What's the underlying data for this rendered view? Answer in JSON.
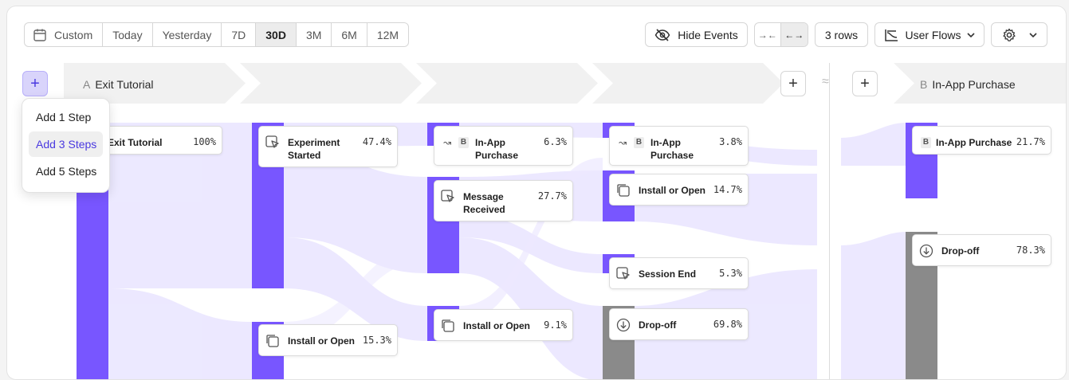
{
  "toolbar": {
    "date_ranges": [
      "Custom",
      "Today",
      "Yesterday",
      "7D",
      "30D",
      "3M",
      "6M",
      "12M"
    ],
    "active_range": "30D",
    "hide_events_label": "Hide Events",
    "rows_label": "3 rows",
    "view_label": "User Flows"
  },
  "steps": {
    "start": {
      "letter": "A",
      "label": "Exit Tutorial"
    },
    "end": {
      "letter": "B",
      "label": "In-App Purchase"
    }
  },
  "add_menu": {
    "items": [
      "Add 1 Step",
      "Add 3 Steps",
      "Add 5 Steps"
    ],
    "selected": "Add 3 Steps"
  },
  "nodes": {
    "exit_tutorial": {
      "name": "Exit Tutorial",
      "pct": "100%"
    },
    "experiment_started": {
      "name": "Experiment Started",
      "pct": "47.4%"
    },
    "install_open_1": {
      "name": "Install or Open",
      "pct": "15.3%"
    },
    "in_app_purchase_2": {
      "letter": "B",
      "name": "In-App Purchase",
      "pct": "6.3%"
    },
    "message_received": {
      "name": "Message Received",
      "pct": "27.7%"
    },
    "install_open_2": {
      "name": "Install or Open",
      "pct": "9.1%"
    },
    "in_app_purchase_3": {
      "letter": "B",
      "name": "In-App Purchase",
      "pct": "3.8%"
    },
    "install_open_3": {
      "name": "Install or Open",
      "pct": "14.7%"
    },
    "session_end": {
      "name": "Session End",
      "pct": "5.3%"
    },
    "dropoff_3": {
      "name": "Drop-off",
      "pct": "69.8%"
    },
    "in_app_purchase_end": {
      "letter": "B",
      "name": "In-App Purchase",
      "pct": "21.7%"
    },
    "dropoff_end": {
      "name": "Drop-off",
      "pct": "78.3%"
    }
  },
  "colors": {
    "accent": "#7856ff",
    "dropoff": "#8a8a8a",
    "flow": "#e6e1ff"
  }
}
